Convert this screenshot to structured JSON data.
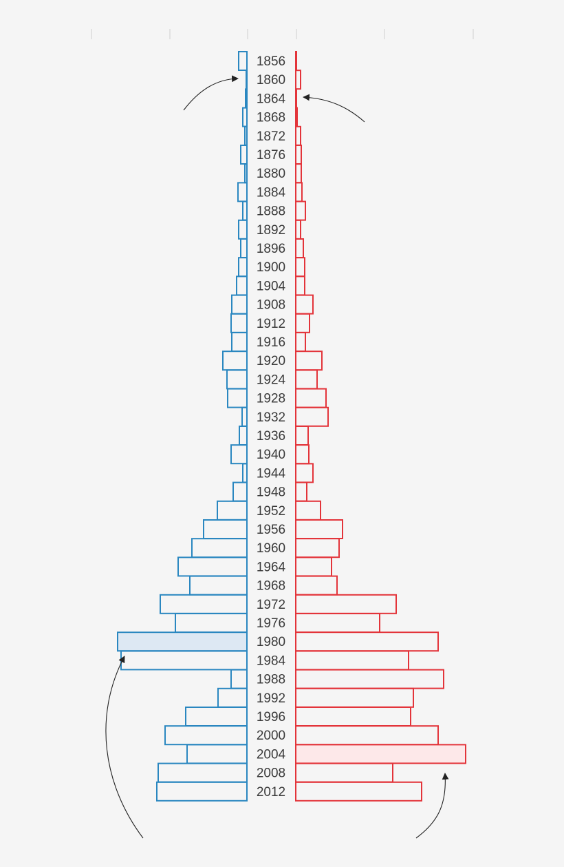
{
  "chart_data": {
    "type": "bar",
    "layout": "back-to-back",
    "categories": [
      "1856",
      "1860",
      "1864",
      "1868",
      "1872",
      "1876",
      "1880",
      "1884",
      "1888",
      "1892",
      "1896",
      "1900",
      "1904",
      "1908",
      "1912",
      "1916",
      "1920",
      "1924",
      "1928",
      "1932",
      "1936",
      "1940",
      "1944",
      "1948",
      "1952",
      "1956",
      "1960",
      "1964",
      "1968",
      "1972",
      "1976",
      "1980",
      "1984",
      "1988",
      "1992",
      "1996",
      "2000",
      "2004",
      "2008",
      "2012"
    ],
    "series": [
      {
        "name": "left",
        "side": "left",
        "color": "#2a87c0",
        "highlight_fill": "#dde8f3",
        "highlight": [
          "1980"
        ],
        "values": [
          12,
          1,
          2,
          6,
          3,
          9,
          3,
          13,
          6,
          12,
          9,
          12,
          15,
          22,
          23,
          22,
          35,
          29,
          28,
          7,
          11,
          23,
          6,
          20,
          43,
          63,
          80,
          100,
          83,
          126,
          104,
          188,
          183,
          23,
          42,
          89,
          119,
          87,
          129,
          131
        ]
      },
      {
        "name": "right",
        "side": "right",
        "color": "#e3343a",
        "highlight_fill": "#fde8e9",
        "highlight": [
          "2004"
        ],
        "values": [
          1,
          7,
          1,
          2,
          7,
          8,
          8,
          9,
          14,
          7,
          11,
          13,
          13,
          25,
          20,
          14,
          38,
          31,
          44,
          47,
          18,
          19,
          25,
          16,
          36,
          68,
          63,
          52,
          60,
          146,
          122,
          207,
          164,
          215,
          171,
          167,
          207,
          247,
          141,
          183
        ]
      }
    ],
    "scale_max": 250,
    "gridlines": true
  }
}
